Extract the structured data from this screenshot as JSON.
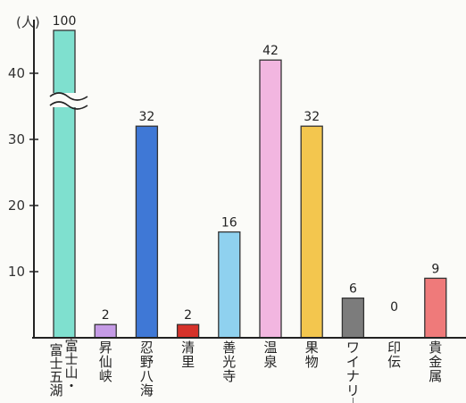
{
  "chart_data": {
    "type": "bar",
    "unit": "(人)",
    "categories": [
      "富士山・富士五湖",
      "昇仙峡",
      "忍野八海",
      "清里",
      "善光寺",
      "温泉",
      "果物",
      "ワイナリー",
      "印伝",
      "貴金属"
    ],
    "values": [
      100,
      2,
      32,
      2,
      16,
      42,
      32,
      6,
      0,
      9
    ],
    "data_labels": [
      "100",
      "2",
      "32",
      "2",
      "16",
      "42",
      "32",
      "6",
      "0",
      "9"
    ],
    "colors": [
      "#7fe0cf",
      "#c59be6",
      "#3f78d6",
      "#d6322a",
      "#8fd1ef",
      "#f2b6e0",
      "#f3c64e",
      "#7c7c7c",
      "#ffffff",
      "#ef7a7a"
    ],
    "y_ticks": [
      10,
      20,
      30,
      40
    ],
    "ylim": [
      0,
      45
    ],
    "axis_break": true,
    "grid": false
  }
}
